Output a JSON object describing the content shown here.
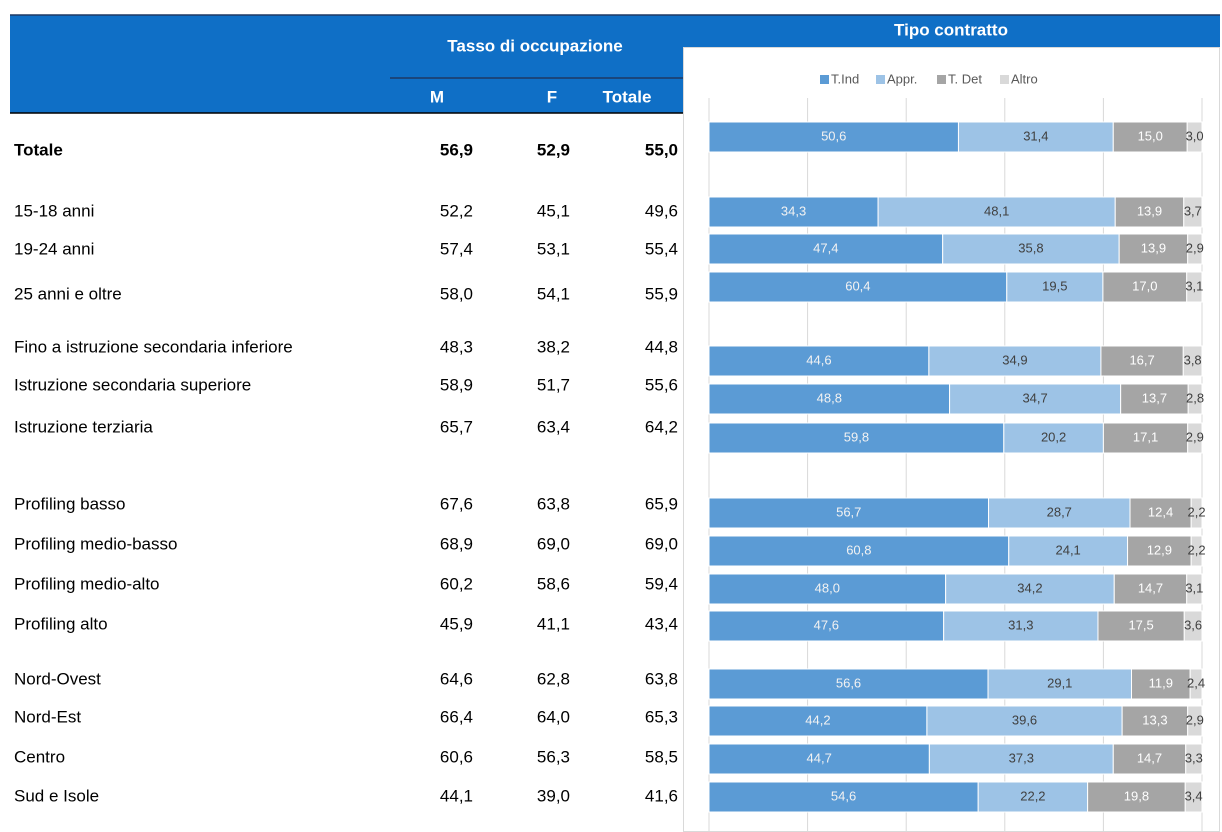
{
  "table": {
    "group_header": "Tasso di occupazione",
    "columns": [
      "M",
      "F",
      "Totale"
    ],
    "rows": [
      {
        "label": "Totale",
        "cells": [
          "56,9",
          "52,9",
          "55,0"
        ]
      },
      {
        "label": "15-18 anni",
        "cells": [
          "52,2",
          "45,1",
          "49,6"
        ]
      },
      {
        "label": "19-24 anni",
        "cells": [
          "57,4",
          "53,1",
          "55,4"
        ]
      },
      {
        "label": "25 anni e oltre",
        "cells": [
          "58,0",
          "54,1",
          "55,9"
        ]
      },
      {
        "label": "Fino a istruzione secondaria inferiore",
        "cells": [
          "48,3",
          "38,2",
          "44,8"
        ]
      },
      {
        "label": "Istruzione secondaria superiore",
        "cells": [
          "58,9",
          "51,7",
          "55,6"
        ]
      },
      {
        "label": "Istruzione terziaria",
        "cells": [
          "65,7",
          "63,4",
          "64,2"
        ]
      },
      {
        "label": "Profiling basso",
        "cells": [
          "67,6",
          "63,8",
          "65,9"
        ]
      },
      {
        "label": "Profiling medio-basso",
        "cells": [
          "68,9",
          "69,0",
          "69,0"
        ]
      },
      {
        "label": "Profiling medio-alto",
        "cells": [
          "60,2",
          "58,6",
          "59,4"
        ]
      },
      {
        "label": "Profiling alto",
        "cells": [
          "45,9",
          "41,1",
          "43,4"
        ]
      },
      {
        "label": "Nord-Ovest",
        "cells": [
          "64,6",
          "62,8",
          "63,8"
        ]
      },
      {
        "label": "Nord-Est",
        "cells": [
          "66,4",
          "64,0",
          "65,3"
        ]
      },
      {
        "label": "Centro",
        "cells": [
          "60,6",
          "56,3",
          "58,5"
        ]
      },
      {
        "label": "Sud e Isole",
        "cells": [
          "44,1",
          "39,0",
          "41,6"
        ]
      }
    ]
  },
  "chart_data": {
    "type": "stacked-bar-horizontal",
    "title": "Tipo contratto",
    "xlim": [
      0,
      100
    ],
    "xticks": [
      0,
      20,
      40,
      60,
      80,
      100
    ],
    "grid": true,
    "legend": "top",
    "series": [
      {
        "name": "T.Ind",
        "color": "#5b9bd5",
        "values": [
          50.6,
          34.3,
          47.4,
          60.4,
          44.6,
          48.8,
          59.8,
          56.7,
          60.8,
          48.0,
          47.6,
          56.6,
          44.2,
          44.7,
          54.6
        ],
        "value_labels": [
          "50,6",
          "34,3",
          "47,4",
          "60,4",
          "44,6",
          "48,8",
          "59,8",
          "56,7",
          "60,8",
          "48,0",
          "47,6",
          "56,6",
          "44,2",
          "44,7",
          "54,6"
        ]
      },
      {
        "name": "Appr.",
        "color": "#9dc3e6",
        "values": [
          31.4,
          48.1,
          35.8,
          19.5,
          34.9,
          34.7,
          20.2,
          28.7,
          24.1,
          34.2,
          31.3,
          29.1,
          39.6,
          37.3,
          22.2
        ],
        "value_labels": [
          "31,4",
          "48,1",
          "35,8",
          "19,5",
          "34,9",
          "34,7",
          "20,2",
          "28,7",
          "24,1",
          "34,2",
          "31,3",
          "29,1",
          "39,6",
          "37,3",
          "22,2"
        ]
      },
      {
        "name": "T. Det",
        "color": "#a5a5a5",
        "values": [
          15.0,
          13.9,
          13.9,
          17.0,
          16.7,
          13.7,
          17.1,
          12.4,
          12.9,
          14.7,
          17.5,
          11.9,
          13.3,
          14.7,
          19.8
        ],
        "value_labels": [
          "15,0",
          "13,9",
          "13,9",
          "17,0",
          "16,7",
          "13,7",
          "17,1",
          "12,4",
          "12,9",
          "14,7",
          "17,5",
          "11,9",
          "13,3",
          "14,7",
          "19,8"
        ]
      },
      {
        "name": "Altro",
        "color": "#d9d9d9",
        "values": [
          3.0,
          3.7,
          2.9,
          3.1,
          3.8,
          2.8,
          2.9,
          2.2,
          2.2,
          3.1,
          3.6,
          2.4,
          2.9,
          3.3,
          3.4
        ],
        "value_labels": [
          "3,0",
          "3,7",
          "2,9",
          "3,1",
          "3,8",
          "2,8",
          "2,9",
          "2,2",
          "2,2",
          "3,1",
          "3,6",
          "2,4",
          "2,9",
          "3,3",
          "3,4"
        ]
      }
    ]
  }
}
